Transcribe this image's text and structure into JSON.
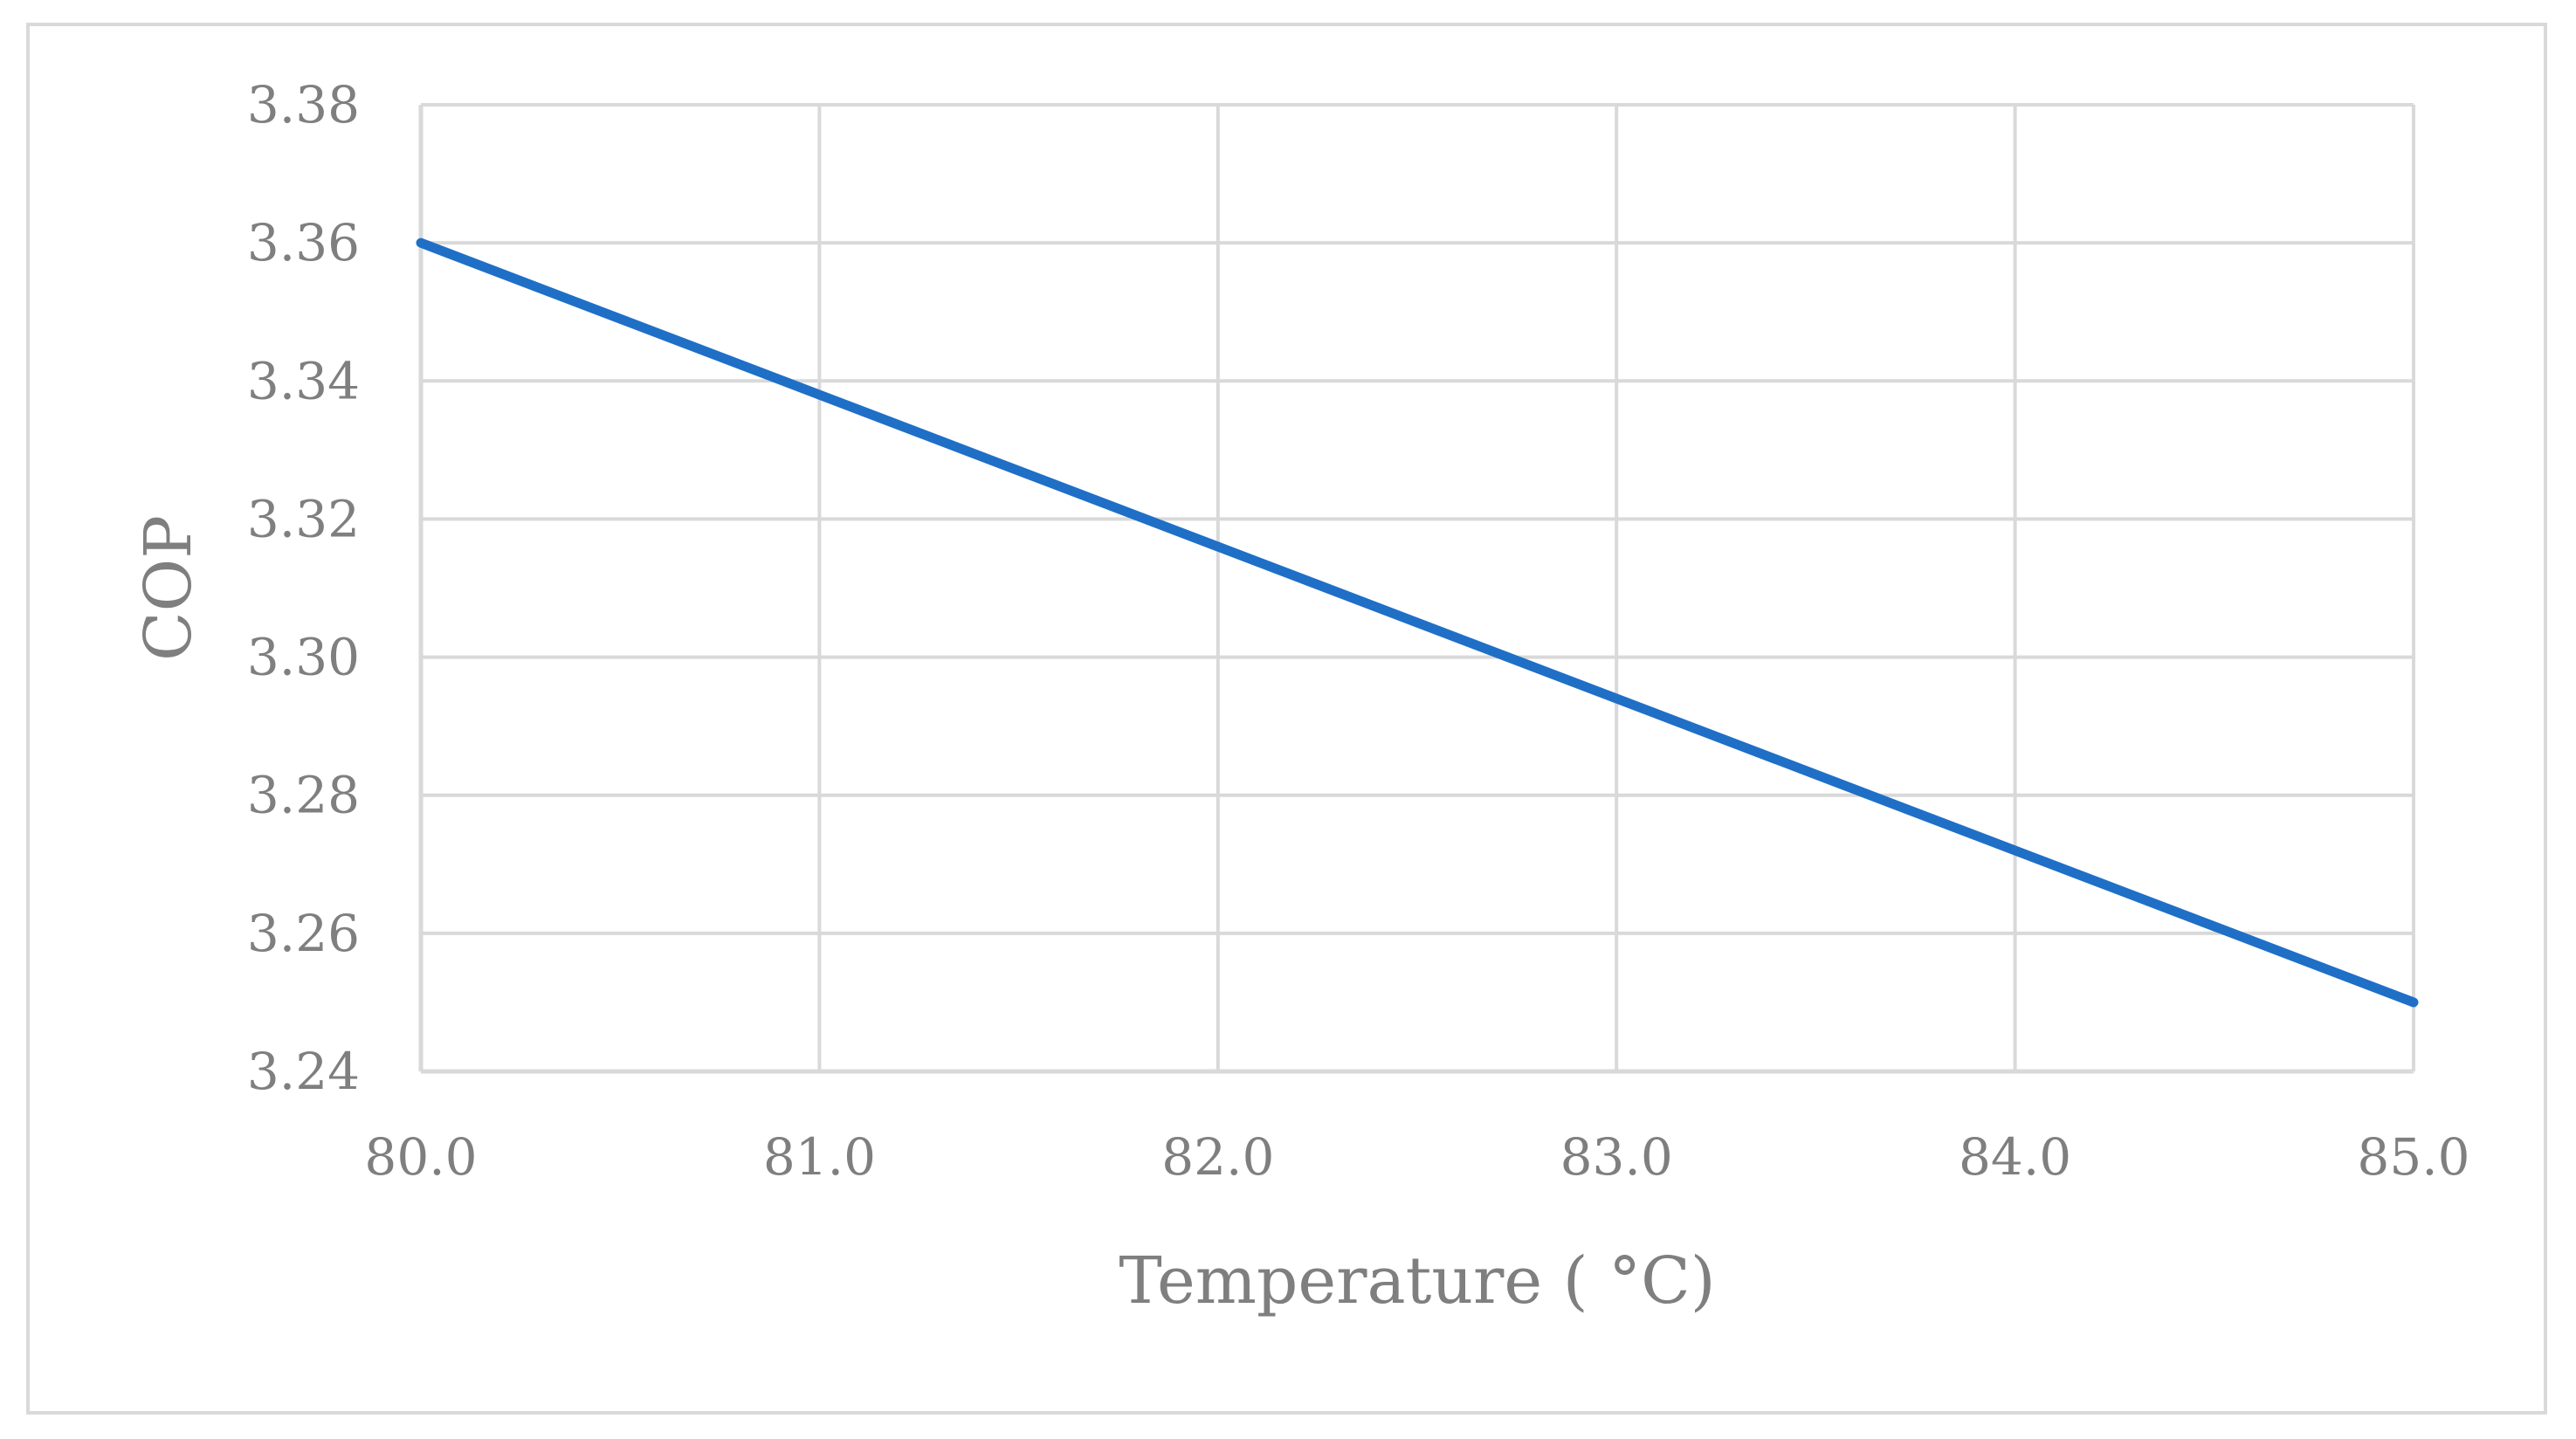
{
  "chart_data": {
    "type": "line",
    "title": "",
    "xlabel": "Temperature ( °C)",
    "ylabel": "COP",
    "xlim": [
      80.0,
      85.0
    ],
    "ylim": [
      3.24,
      3.38
    ],
    "x_ticks": [
      80.0,
      81.0,
      82.0,
      83.0,
      84.0,
      85.0
    ],
    "x_tick_labels": [
      "80.0",
      "81.0",
      "82.0",
      "83.0",
      "84.0",
      "85.0"
    ],
    "y_ticks": [
      3.24,
      3.26,
      3.28,
      3.3,
      3.32,
      3.34,
      3.36,
      3.38
    ],
    "y_tick_labels": [
      "3.24",
      "3.26",
      "3.28",
      "3.30",
      "3.32",
      "3.34",
      "3.36",
      "3.38"
    ],
    "grid": true,
    "legend": "none",
    "series": [
      {
        "name": "COP",
        "color": "#1f6fc6",
        "x": [
          80.0,
          81.0,
          82.0,
          83.0,
          84.0,
          85.0
        ],
        "y": [
          3.36,
          3.338,
          3.316,
          3.294,
          3.272,
          3.25
        ]
      }
    ]
  }
}
